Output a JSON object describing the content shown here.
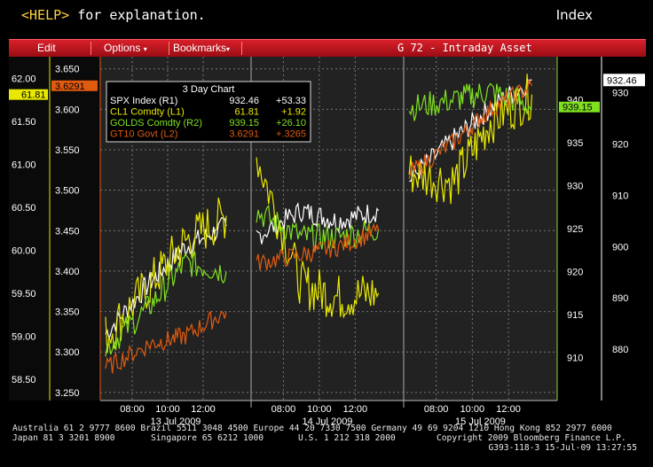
{
  "header": {
    "help_key": "<HELP>",
    "help_text": " for explanation.",
    "index_label": "Index",
    "index_icon": "G"
  },
  "menubar": {
    "edit": "Edit",
    "options": "Options",
    "bookmarks": "Bookmarks",
    "title": "G 72 - Intraday Asset"
  },
  "colors": {
    "spx": "#ffffff",
    "cl1": "#e8e800",
    "golds": "#7fe020",
    "gt10": "#e05a10",
    "menubar": "#c4141c",
    "plot_bg": "#222222"
  },
  "legend": {
    "title": "3 Day Chart",
    "rows": [
      {
        "name": "SPX Index (R1)",
        "last": "932.46",
        "chg": "+53.33",
        "color": "#ffffff"
      },
      {
        "name": "CL1 Comdty (L1)",
        "last": "61.81",
        "chg": "+1.92",
        "color": "#e8e800"
      },
      {
        "name": "GOLDS Comdty (R2)",
        "last": "939.15",
        "chg": "+26.10",
        "color": "#7fe020"
      },
      {
        "name": "GT10 Govt (L2)",
        "last": "3.6291",
        "chg": "+.3265",
        "color": "#e05a10"
      }
    ]
  },
  "axes": {
    "l1_ticks": [
      "62.00",
      "61.50",
      "61.00",
      "60.50",
      "60.00",
      "59.50",
      "59.00",
      "58.50"
    ],
    "l2_ticks": [
      "3.650",
      "3.600",
      "3.550",
      "3.500",
      "3.450",
      "3.400",
      "3.350",
      "3.300",
      "3.250"
    ],
    "r2_ticks": [
      "940",
      "935",
      "930",
      "925",
      "920",
      "915",
      "910"
    ],
    "r1_ticks": [
      "930",
      "920",
      "910",
      "900",
      "890",
      "880"
    ],
    "x_times": [
      "08:00",
      "10:00",
      "12:00",
      "08:00",
      "10:00",
      "12:00",
      "08:00",
      "10:00",
      "12:00"
    ],
    "x_days": [
      "13 Jul 2009",
      "14 Jul 2009",
      "15 Jul 2009"
    ],
    "current_labels": {
      "l1": "61.81",
      "l2": "3.6291",
      "r1": "932.46",
      "r2": "939.15"
    }
  },
  "chart_data": {
    "type": "line",
    "title": "3 Day Chart",
    "x": [
      "13 Jul 2009 07:00",
      "13 Jul 2009 09:00",
      "13 Jul 2009 11:00",
      "13 Jul 2009 13:00",
      "14 Jul 2009 07:00",
      "14 Jul 2009 09:00",
      "14 Jul 2009 11:00",
      "14 Jul 2009 13:00",
      "15 Jul 2009 07:00",
      "15 Jul 2009 09:00",
      "15 Jul 2009 11:00",
      "15 Jul 2009 13:00"
    ],
    "series": [
      {
        "name": "SPX Index (R1)",
        "axis": "R1",
        "values": [
          883,
          893,
          900,
          904,
          902,
          907,
          905,
          907,
          913,
          921,
          927,
          932.46
        ]
      },
      {
        "name": "CL1 Comdty (L1)",
        "axis": "L1",
        "values": [
          59.0,
          59.6,
          60.1,
          60.4,
          61.1,
          59.6,
          59.45,
          59.5,
          60.9,
          60.8,
          61.5,
          61.81
        ]
      },
      {
        "name": "GOLDS Comdty (R2)",
        "axis": "R2",
        "values": [
          911,
          916,
          921,
          920,
          927,
          924,
          924,
          925,
          939,
          940,
          941,
          939.15
        ]
      },
      {
        "name": "GT10 Govt (L2)",
        "axis": "L2",
        "values": [
          3.28,
          3.31,
          3.32,
          3.35,
          3.41,
          3.42,
          3.43,
          3.45,
          3.52,
          3.56,
          3.6,
          3.6291
        ]
      }
    ],
    "ylim_l1": [
      58.25,
      62.25
    ],
    "ylim_l2": [
      3.24,
      3.665
    ],
    "ylim_r1": [
      870,
      937
    ],
    "ylim_r2": [
      905,
      945
    ],
    "grid": true,
    "legend_position": "top-left"
  },
  "footer": {
    "line1": "Australia 61 2 9777 8600 Brazil 5511 3048 4500 Europe 44 20 7330 7500 Germany 49 69 9204 1210 Hong Kong 852 2977 6000",
    "line2_left": "Japan 81 3 3201 8900",
    "line2_mid": "Singapore 65 6212 1000",
    "line2_mid2": "U.S. 1 212 318 2000",
    "line2_right": "Copyright 2009 Bloomberg Finance L.P.",
    "line3": "G393-118-3 15-Jul-09 13:27:55"
  }
}
